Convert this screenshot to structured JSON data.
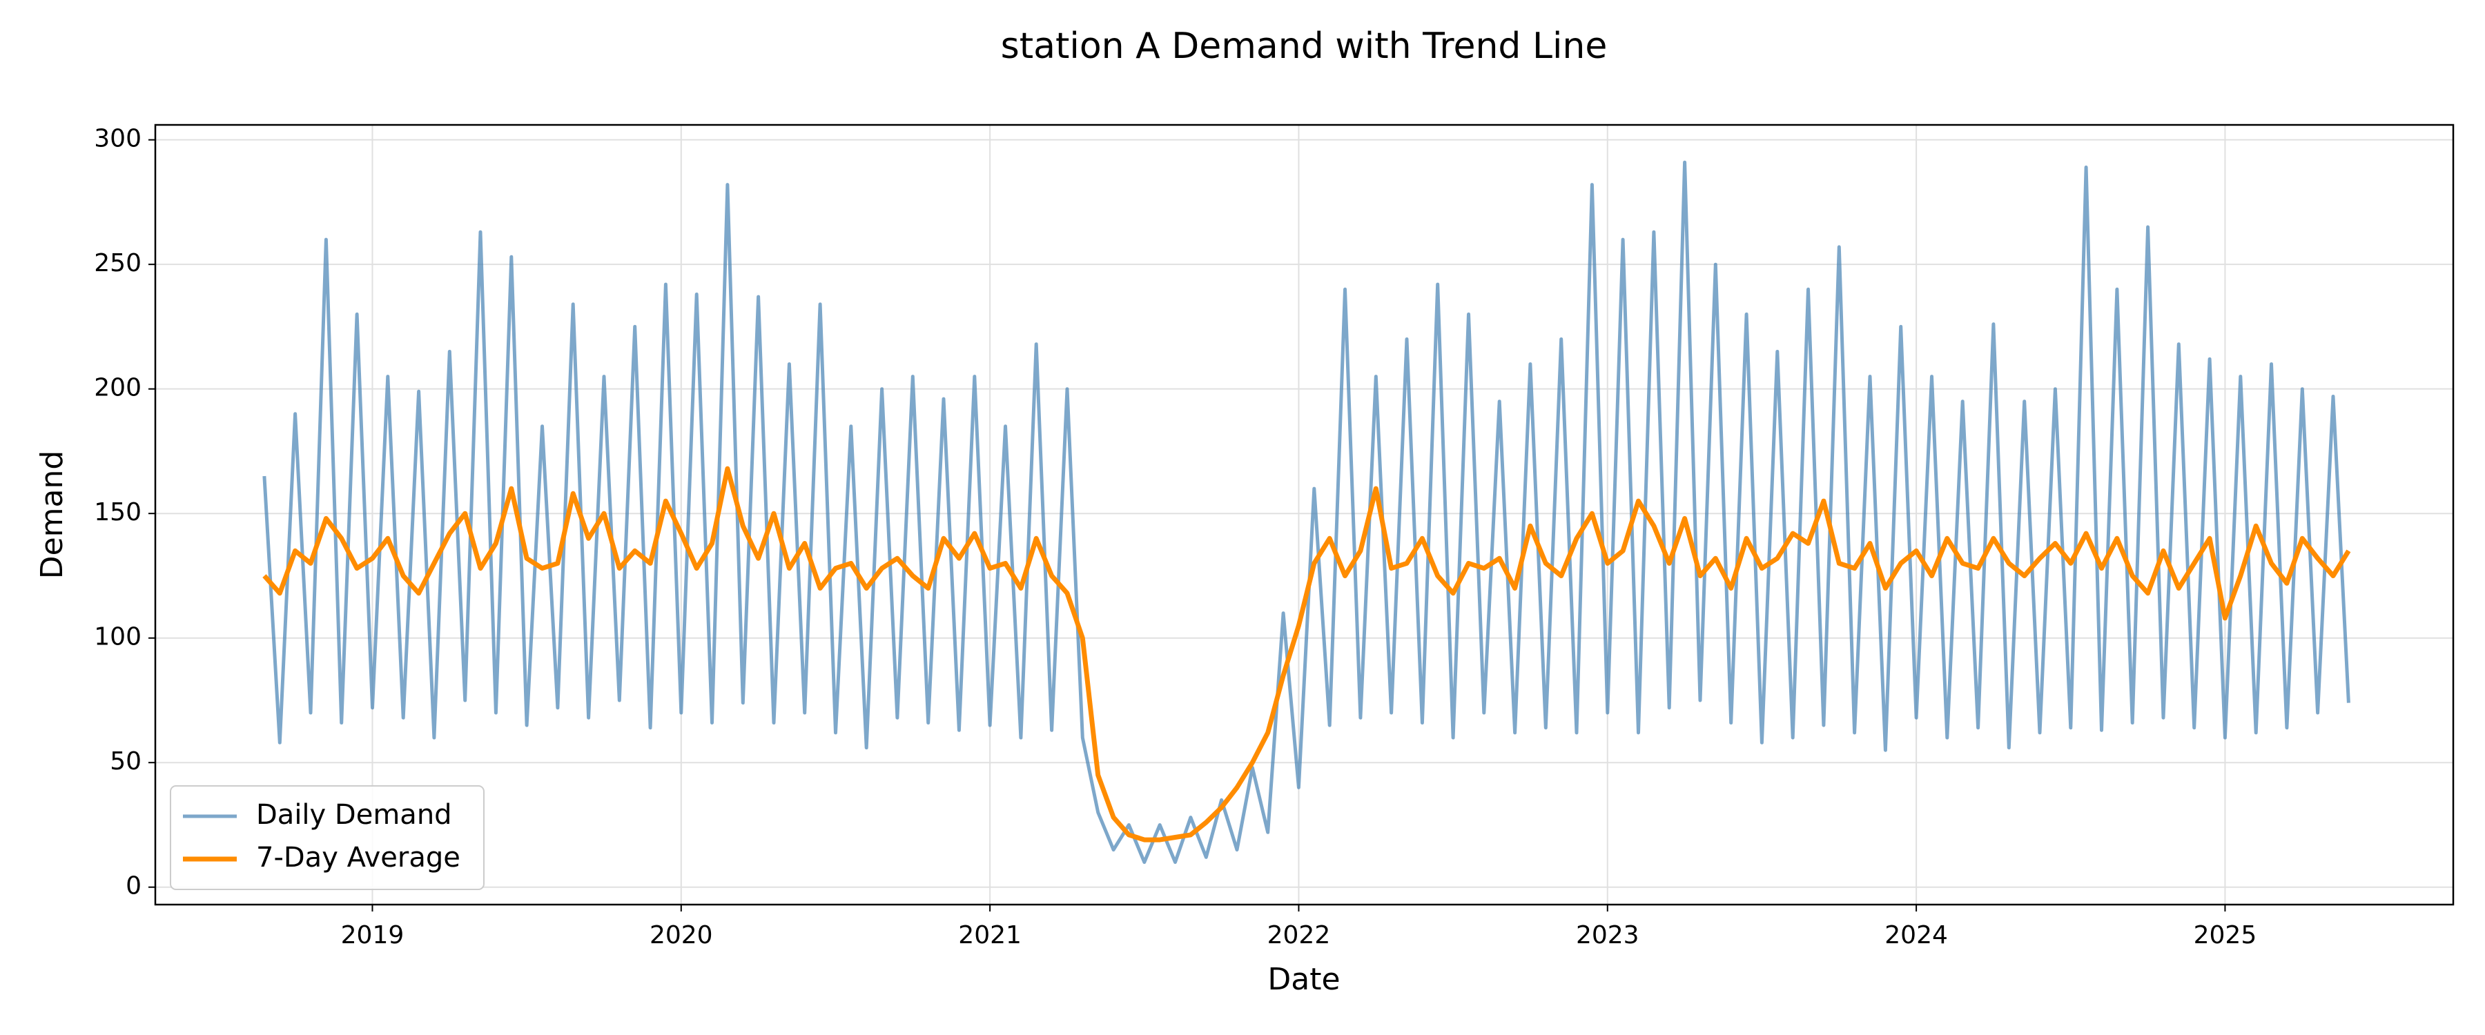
{
  "chart_data": {
    "type": "line",
    "title": "station A Demand with Trend Line",
    "x_label": "Date",
    "y_label": "Demand",
    "x": [
      2018.65,
      2018.7,
      2018.75,
      2018.8,
      2018.85,
      2018.9,
      2018.95,
      2019.0,
      2019.05,
      2019.1,
      2019.15,
      2019.2,
      2019.25,
      2019.3,
      2019.35,
      2019.4,
      2019.45,
      2019.5,
      2019.55,
      2019.6,
      2019.65,
      2019.7,
      2019.75,
      2019.8,
      2019.85,
      2019.9,
      2019.95,
      2020.0,
      2020.05,
      2020.1,
      2020.15,
      2020.2,
      2020.25,
      2020.3,
      2020.35,
      2020.4,
      2020.45,
      2020.5,
      2020.55,
      2020.6,
      2020.65,
      2020.7,
      2020.75,
      2020.8,
      2020.85,
      2020.9,
      2020.95,
      2021.0,
      2021.05,
      2021.1,
      2021.15,
      2021.2,
      2021.25,
      2021.3,
      2021.35,
      2021.4,
      2021.45,
      2021.5,
      2021.55,
      2021.6,
      2021.65,
      2021.7,
      2021.75,
      2021.8,
      2021.85,
      2021.9,
      2021.95,
      2022.0,
      2022.05,
      2022.1,
      2022.15,
      2022.2,
      2022.25,
      2022.3,
      2022.35,
      2022.4,
      2022.45,
      2022.5,
      2022.55,
      2022.6,
      2022.65,
      2022.7,
      2022.75,
      2022.8,
      2022.85,
      2022.9,
      2022.95,
      2023.0,
      2023.05,
      2023.1,
      2023.15,
      2023.2,
      2023.25,
      2023.3,
      2023.35,
      2023.4,
      2023.45,
      2023.5,
      2023.55,
      2023.6,
      2023.65,
      2023.7,
      2023.75,
      2023.8,
      2023.85,
      2023.9,
      2023.95,
      2024.0,
      2024.05,
      2024.1,
      2024.15,
      2024.2,
      2024.25,
      2024.3,
      2024.35,
      2024.4,
      2024.45,
      2024.5,
      2024.55,
      2024.6,
      2024.65,
      2024.7,
      2024.75,
      2024.8,
      2024.85,
      2024.9,
      2024.95,
      2025.0,
      2025.05,
      2025.1,
      2025.15,
      2025.2,
      2025.25,
      2025.3,
      2025.35,
      2025.4
    ],
    "series": [
      {
        "name": "Daily Demand",
        "color": "#4682b4",
        "opacity": 0.7,
        "width": 5,
        "values": [
          165,
          58,
          190,
          70,
          260,
          66,
          230,
          72,
          205,
          68,
          199,
          60,
          215,
          75,
          263,
          70,
          253,
          65,
          185,
          72,
          234,
          68,
          205,
          75,
          225,
          64,
          242,
          70,
          238,
          66,
          282,
          74,
          237,
          66,
          210,
          70,
          234,
          62,
          185,
          56,
          200,
          68,
          205,
          66,
          196,
          63,
          205,
          65,
          185,
          60,
          218,
          63,
          200,
          60,
          30,
          15,
          25,
          10,
          25,
          10,
          28,
          12,
          35,
          15,
          48,
          22,
          110,
          40,
          160,
          65,
          240,
          68,
          205,
          70,
          220,
          66,
          242,
          60,
          230,
          70,
          195,
          62,
          210,
          64,
          220,
          62,
          282,
          70,
          260,
          62,
          263,
          72,
          291,
          75,
          250,
          66,
          230,
          58,
          215,
          60,
          240,
          65,
          257,
          62,
          205,
          55,
          225,
          68,
          205,
          60,
          195,
          64,
          226,
          56,
          195,
          62,
          200,
          64,
          289,
          63,
          240,
          66,
          265,
          68,
          218,
          64,
          212,
          60,
          205,
          62,
          210,
          64,
          200,
          70,
          197,
          74
        ]
      },
      {
        "name": "7-Day Average",
        "color": "#ff8c00",
        "opacity": 1,
        "width": 7,
        "values": [
          125,
          118,
          135,
          130,
          148,
          140,
          128,
          132,
          140,
          125,
          118,
          130,
          142,
          150,
          128,
          138,
          160,
          132,
          128,
          130,
          158,
          140,
          150,
          128,
          135,
          130,
          155,
          142,
          128,
          138,
          168,
          145,
          132,
          150,
          128,
          138,
          120,
          128,
          130,
          120,
          128,
          132,
          125,
          120,
          140,
          132,
          142,
          128,
          130,
          120,
          140,
          125,
          118,
          100,
          45,
          28,
          21,
          19,
          19,
          20,
          21,
          26,
          32,
          40,
          50,
          62,
          85,
          105,
          130,
          140,
          125,
          135,
          160,
          128,
          130,
          140,
          125,
          118,
          130,
          128,
          132,
          120,
          145,
          130,
          125,
          140,
          150,
          130,
          135,
          155,
          145,
          130,
          148,
          125,
          132,
          120,
          140,
          128,
          132,
          142,
          138,
          155,
          130,
          128,
          138,
          120,
          130,
          135,
          125,
          140,
          130,
          128,
          140,
          130,
          125,
          132,
          138,
          130,
          142,
          128,
          140,
          125,
          118,
          135,
          120,
          130,
          140,
          108,
          125,
          145,
          130,
          122,
          140,
          132,
          125,
          135
        ]
      }
    ],
    "xlim": [
      2018.297,
      2025.739
    ],
    "xticks": [
      2019,
      2020,
      2021,
      2022,
      2023,
      2024,
      2025
    ],
    "ylim": [
      -7,
      306
    ],
    "yticks": [
      0,
      50,
      100,
      150,
      200,
      250,
      300
    ],
    "grid": true,
    "legend": "lower left"
  }
}
